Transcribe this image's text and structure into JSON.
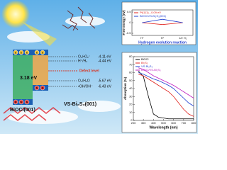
{
  "diagram": {
    "left_material": "BiOCl(001)",
    "band_gap": "3.18 eV",
    "right_material": "VS-Bi₂S₃(001)",
    "electron": "e",
    "hole": "h",
    "defect_level": "Defect level",
    "levels": [
      {
        "couple": "O₂/•O₂⁻",
        "energy": "-4.11 eV"
      },
      {
        "couple": "H⁺/H₂",
        "energy": "-4.44 eV"
      },
      {
        "couple": "O₂/H₂O",
        "energy": "-5.67 eV"
      },
      {
        "couple": "•OH/OH⁻",
        "energy": "-6.43 eV"
      }
    ]
  },
  "chart_data": [
    {
      "type": "line",
      "title": "Hydrogen evolution reaction",
      "y_label": "Free energy (eV)",
      "categories": [
        "H⁺",
        "H*",
        "1/2 H₂"
      ],
      "series": [
        {
          "name": "Pt(111), -0.09 eV",
          "color": "#e0201b",
          "values": [
            0,
            -0.09,
            0
          ]
        },
        {
          "name": "BiOCl/VS-Bi₂S₃(001)",
          "color": "#1f3fd1",
          "values": [
            0,
            0.16,
            0
          ]
        }
      ],
      "ylim": [
        -0.6,
        0.6
      ],
      "yticks": [
        -0.5,
        0,
        0.5
      ]
    },
    {
      "type": "line",
      "x_label": "Wavelength (nm)",
      "y_label": "Absorption (%)",
      "x": [
        250,
        300,
        350,
        400,
        450,
        500,
        550,
        600,
        650,
        700,
        750,
        800
      ],
      "series": [
        {
          "name": "BiOCl",
          "color": "#000000",
          "values": [
            62,
            55,
            30,
            8,
            4,
            3,
            2,
            2,
            2,
            2,
            2,
            2
          ]
        },
        {
          "name": "Bi₂S₃",
          "color": "#e0201b",
          "values": [
            58,
            56,
            52,
            48,
            44,
            40,
            36,
            30,
            22,
            14,
            8,
            5
          ]
        },
        {
          "name": "VS-Bi₂S₃",
          "color": "#1f3fd1",
          "values": [
            60,
            58,
            55,
            52,
            50,
            47,
            44,
            40,
            34,
            28,
            22,
            18
          ]
        },
        {
          "name": "BiOCl/VS-Bi₂S₃",
          "color": "#c020c0",
          "values": [
            66,
            64,
            60,
            56,
            53,
            50,
            47,
            44,
            40,
            36,
            32,
            28
          ]
        }
      ],
      "xlim": [
        200,
        800
      ],
      "xticks": [
        200,
        300,
        400,
        500,
        600,
        700,
        800
      ],
      "ylim": [
        0,
        80
      ],
      "yticks": [
        0,
        10,
        20,
        30,
        40,
        50,
        60,
        70,
        80
      ]
    }
  ]
}
